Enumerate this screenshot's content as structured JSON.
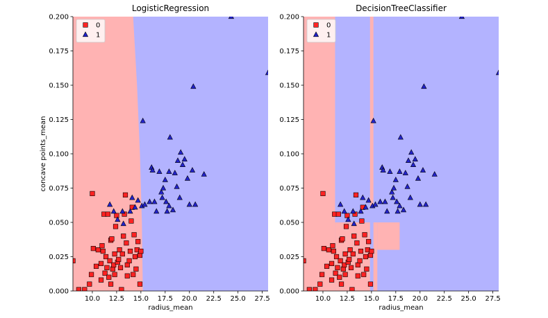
{
  "chart_data": [
    {
      "type": "scatter",
      "title": "LogisticRegression",
      "xlabel": "radius_mean",
      "ylabel": "concave points_mean",
      "xlim": [
        8.0,
        28.1
      ],
      "ylim": [
        0.0,
        0.2
      ],
      "xticks": [
        "10.0",
        "12.5",
        "15.0",
        "17.5",
        "20.0",
        "22.5",
        "25.0",
        "27.5"
      ],
      "yticks": [
        "0.000",
        "0.025",
        "0.050",
        "0.075",
        "0.100",
        "0.125",
        "0.150",
        "0.175",
        "0.200"
      ],
      "legend": {
        "position": "top-left",
        "entries": [
          "0",
          "1"
        ]
      },
      "region_colors": {
        "0": "#ffb3b3",
        "1": "#b3b3ff"
      },
      "decision_boundary": [
        [
          14.2,
          0.2
        ],
        [
          14.6,
          0.15
        ],
        [
          14.9,
          0.1
        ],
        [
          15.1,
          0.05
        ],
        [
          15.2,
          0.0
        ]
      ],
      "tree_regions": [],
      "series": [
        {
          "name": "0",
          "marker": "square",
          "color": "#ff2222",
          "points": [
            [
              8.0,
              0.022
            ],
            [
              8.6,
              0.001
            ],
            [
              9.2,
              0.001
            ],
            [
              9.7,
              0.005
            ],
            [
              9.9,
              0.012
            ],
            [
              10.0,
              0.071
            ],
            [
              10.1,
              0.031
            ],
            [
              10.4,
              0.018
            ],
            [
              10.6,
              0.03
            ],
            [
              10.9,
              0.008
            ],
            [
              10.9,
              0.02
            ],
            [
              11.0,
              0.033
            ],
            [
              11.1,
              0.029
            ],
            [
              11.2,
              0.056
            ],
            [
              11.3,
              0.013
            ],
            [
              11.4,
              0.025
            ],
            [
              11.5,
              0.017
            ],
            [
              11.6,
              0.056
            ],
            [
              11.7,
              0.01
            ],
            [
              11.8,
              0.022
            ],
            [
              11.9,
              0.005
            ],
            [
              11.9,
              0.037
            ],
            [
              12.0,
              0.038
            ],
            [
              12.1,
              0.016
            ],
            [
              12.2,
              0.019
            ],
            [
              12.3,
              0.027
            ],
            [
              12.3,
              0.012
            ],
            [
              12.4,
              0.047
            ],
            [
              12.5,
              0.055
            ],
            [
              12.6,
              0.021
            ],
            [
              12.7,
              0.023
            ],
            [
              12.8,
              0.03
            ],
            [
              12.9,
              0.017
            ],
            [
              13.0,
              0.001
            ],
            [
              13.1,
              0.027
            ],
            [
              13.2,
              0.04
            ],
            [
              13.3,
              0.056
            ],
            [
              13.4,
              0.07
            ],
            [
              13.5,
              0.035
            ],
            [
              13.6,
              0.011
            ],
            [
              13.6,
              0.019
            ],
            [
              13.8,
              0.022
            ],
            [
              13.9,
              0.029
            ],
            [
              14.0,
              0.051
            ],
            [
              14.1,
              0.061
            ],
            [
              14.2,
              0.012
            ],
            [
              14.3,
              0.041
            ],
            [
              14.4,
              0.025
            ],
            [
              14.5,
              0.016
            ],
            [
              14.6,
              0.03
            ],
            [
              14.7,
              0.036
            ],
            [
              14.9,
              0.026
            ],
            [
              14.9,
              0.005
            ],
            [
              15.0,
              0.029
            ]
          ]
        },
        {
          "name": "1",
          "marker": "triangle",
          "color": "#2222cc",
          "points": [
            [
              11.8,
              0.063
            ],
            [
              12.2,
              0.058
            ],
            [
              12.6,
              0.052
            ],
            [
              13.1,
              0.058
            ],
            [
              13.2,
              0.049
            ],
            [
              13.9,
              0.058
            ],
            [
              14.1,
              0.068
            ],
            [
              14.4,
              0.061
            ],
            [
              14.7,
              0.066
            ],
            [
              15.1,
              0.062
            ],
            [
              15.2,
              0.124
            ],
            [
              15.4,
              0.063
            ],
            [
              15.9,
              0.065
            ],
            [
              16.1,
              0.09
            ],
            [
              16.2,
              0.088
            ],
            [
              16.4,
              0.065
            ],
            [
              16.6,
              0.058
            ],
            [
              16.9,
              0.087
            ],
            [
              17.1,
              0.072
            ],
            [
              17.2,
              0.068
            ],
            [
              17.3,
              0.075
            ],
            [
              17.5,
              0.081
            ],
            [
              17.6,
              0.065
            ],
            [
              17.7,
              0.058
            ],
            [
              17.9,
              0.062
            ],
            [
              17.9,
              0.087
            ],
            [
              18.0,
              0.112
            ],
            [
              18.3,
              0.059
            ],
            [
              18.5,
              0.086
            ],
            [
              18.7,
              0.076
            ],
            [
              18.8,
              0.095
            ],
            [
              19.0,
              0.068
            ],
            [
              19.1,
              0.101
            ],
            [
              19.3,
              0.092
            ],
            [
              19.5,
              0.096
            ],
            [
              19.8,
              0.082
            ],
            [
              20.0,
              0.063
            ],
            [
              20.3,
              0.088
            ],
            [
              20.4,
              0.149
            ],
            [
              20.6,
              0.063
            ],
            [
              21.5,
              0.085
            ],
            [
              24.3,
              0.2
            ],
            [
              28.1,
              0.159
            ]
          ]
        }
      ]
    },
    {
      "type": "scatter",
      "title": "DecisionTreeClassifier",
      "xlabel": "radius_mean",
      "ylabel": "",
      "xlim": [
        8.0,
        28.1
      ],
      "ylim": [
        0.0,
        0.2
      ],
      "xticks": [
        "10.0",
        "12.5",
        "15.0",
        "17.5",
        "20.0",
        "22.5",
        "25.0",
        "27.5"
      ],
      "yticks": [
        "0.000",
        "0.025",
        "0.050",
        "0.075",
        "0.100",
        "0.125",
        "0.150",
        "0.175",
        "0.200"
      ],
      "legend": {
        "position": "top-left",
        "entries": [
          "0",
          "1"
        ]
      },
      "region_colors": {
        "0": "#ffb3b3",
        "1": "#b3b3ff"
      },
      "decision_boundary": [],
      "tree_regions": [
        {
          "class": "0",
          "x": [
            8.0,
            11.25
          ],
          "y": [
            0.0,
            0.2
          ]
        },
        {
          "class": "0",
          "x": [
            11.25,
            14.85
          ],
          "y": [
            0.0,
            0.05
          ]
        },
        {
          "class": "0",
          "x": [
            14.85,
            15.2
          ],
          "y": [
            0.062,
            0.2
          ]
        },
        {
          "class": "0",
          "x": [
            15.2,
            15.6
          ],
          "y": [
            0.0,
            0.05
          ]
        },
        {
          "class": "0",
          "x": [
            15.6,
            17.9
          ],
          "y": [
            0.03,
            0.05
          ]
        }
      ],
      "series": [
        {
          "name": "0",
          "marker": "square",
          "color": "#ff2222",
          "points": [
            [
              8.0,
              0.022
            ],
            [
              8.6,
              0.001
            ],
            [
              9.2,
              0.001
            ],
            [
              9.7,
              0.005
            ],
            [
              9.9,
              0.012
            ],
            [
              10.0,
              0.071
            ],
            [
              10.1,
              0.031
            ],
            [
              10.4,
              0.018
            ],
            [
              10.6,
              0.03
            ],
            [
              10.9,
              0.008
            ],
            [
              10.9,
              0.02
            ],
            [
              11.0,
              0.033
            ],
            [
              11.1,
              0.029
            ],
            [
              11.2,
              0.056
            ],
            [
              11.3,
              0.013
            ],
            [
              11.4,
              0.025
            ],
            [
              11.5,
              0.017
            ],
            [
              11.6,
              0.056
            ],
            [
              11.7,
              0.01
            ],
            [
              11.8,
              0.022
            ],
            [
              11.9,
              0.005
            ],
            [
              11.9,
              0.037
            ],
            [
              12.0,
              0.038
            ],
            [
              12.1,
              0.016
            ],
            [
              12.2,
              0.019
            ],
            [
              12.3,
              0.027
            ],
            [
              12.3,
              0.012
            ],
            [
              12.4,
              0.047
            ],
            [
              12.5,
              0.055
            ],
            [
              12.6,
              0.021
            ],
            [
              12.7,
              0.023
            ],
            [
              12.8,
              0.03
            ],
            [
              12.9,
              0.017
            ],
            [
              13.0,
              0.001
            ],
            [
              13.1,
              0.027
            ],
            [
              13.2,
              0.04
            ],
            [
              13.3,
              0.056
            ],
            [
              13.4,
              0.07
            ],
            [
              13.5,
              0.035
            ],
            [
              13.6,
              0.011
            ],
            [
              13.6,
              0.019
            ],
            [
              13.8,
              0.022
            ],
            [
              13.9,
              0.029
            ],
            [
              14.0,
              0.051
            ],
            [
              14.1,
              0.061
            ],
            [
              14.2,
              0.012
            ],
            [
              14.3,
              0.041
            ],
            [
              14.4,
              0.025
            ],
            [
              14.5,
              0.016
            ],
            [
              14.6,
              0.03
            ],
            [
              14.7,
              0.036
            ],
            [
              14.9,
              0.026
            ],
            [
              14.9,
              0.005
            ],
            [
              15.0,
              0.029
            ]
          ]
        },
        {
          "name": "1",
          "marker": "triangle",
          "color": "#2222cc",
          "points": [
            [
              11.8,
              0.063
            ],
            [
              12.2,
              0.058
            ],
            [
              12.6,
              0.052
            ],
            [
              13.1,
              0.058
            ],
            [
              13.2,
              0.049
            ],
            [
              13.9,
              0.058
            ],
            [
              14.1,
              0.068
            ],
            [
              14.4,
              0.061
            ],
            [
              14.7,
              0.066
            ],
            [
              15.1,
              0.062
            ],
            [
              15.2,
              0.124
            ],
            [
              15.4,
              0.063
            ],
            [
              15.9,
              0.065
            ],
            [
              16.1,
              0.09
            ],
            [
              16.2,
              0.088
            ],
            [
              16.4,
              0.065
            ],
            [
              16.6,
              0.058
            ],
            [
              16.9,
              0.087
            ],
            [
              17.1,
              0.072
            ],
            [
              17.2,
              0.068
            ],
            [
              17.3,
              0.075
            ],
            [
              17.5,
              0.081
            ],
            [
              17.6,
              0.065
            ],
            [
              17.7,
              0.058
            ],
            [
              17.9,
              0.062
            ],
            [
              17.9,
              0.087
            ],
            [
              18.0,
              0.112
            ],
            [
              18.3,
              0.059
            ],
            [
              18.5,
              0.086
            ],
            [
              18.7,
              0.076
            ],
            [
              18.8,
              0.095
            ],
            [
              19.0,
              0.068
            ],
            [
              19.1,
              0.101
            ],
            [
              19.3,
              0.092
            ],
            [
              19.5,
              0.096
            ],
            [
              19.8,
              0.082
            ],
            [
              20.0,
              0.063
            ],
            [
              20.3,
              0.088
            ],
            [
              20.4,
              0.149
            ],
            [
              20.6,
              0.063
            ],
            [
              21.5,
              0.085
            ],
            [
              24.3,
              0.2
            ],
            [
              28.1,
              0.159
            ]
          ]
        }
      ]
    }
  ]
}
